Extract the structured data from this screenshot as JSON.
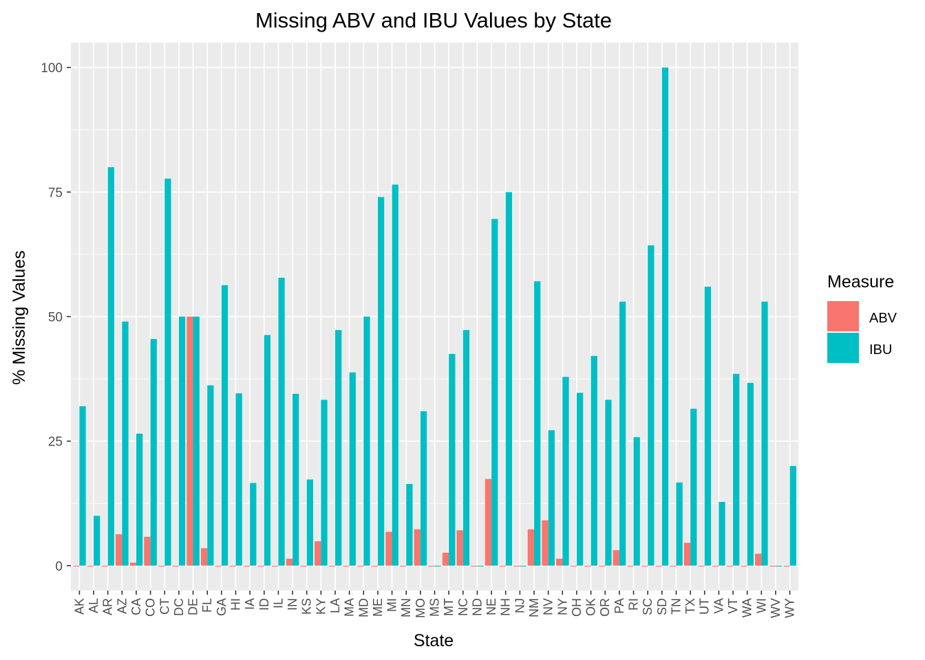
{
  "chart_data": {
    "type": "bar",
    "title": "Missing ABV and IBU Values by State",
    "xlabel": "State",
    "ylabel": "% Missing Values",
    "ylim": [
      -5,
      105
    ],
    "yticks": [
      0,
      25,
      50,
      75,
      100
    ],
    "grid": true,
    "legend": {
      "title": "Measure",
      "position": "right"
    },
    "categories": [
      "AK",
      "AL",
      "AR",
      "AZ",
      "CA",
      "CO",
      "CT",
      "DC",
      "DE",
      "FL",
      "GA",
      "HI",
      "IA",
      "ID",
      "IL",
      "IN",
      "KS",
      "KY",
      "LA",
      "MA",
      "MD",
      "ME",
      "MI",
      "MN",
      "MO",
      "MS",
      "MT",
      "NC",
      "ND",
      "NE",
      "NH",
      "NJ",
      "NM",
      "NV",
      "NY",
      "OH",
      "OK",
      "OR",
      "PA",
      "RI",
      "SC",
      "SD",
      "TN",
      "TX",
      "UT",
      "VA",
      "VT",
      "WA",
      "WI",
      "WV",
      "WY"
    ],
    "series": [
      {
        "name": "ABV",
        "color": "#F8766D",
        "values": [
          0,
          0,
          0,
          6.3,
          0.6,
          5.8,
          0,
          0,
          50,
          3.5,
          0,
          0,
          0,
          0,
          0,
          1.4,
          0,
          4.9,
          0,
          0,
          0,
          0,
          6.8,
          0,
          7.3,
          0,
          2.6,
          7.1,
          0,
          17.4,
          0,
          0,
          7.3,
          9.1,
          1.4,
          0,
          0,
          0,
          3.1,
          0,
          0,
          0,
          0,
          4.6,
          0,
          0,
          0,
          0,
          2.4,
          0,
          0
        ]
      },
      {
        "name": "IBU",
        "color": "#00BFC4",
        "values": [
          32,
          10,
          80,
          49,
          26.5,
          45.5,
          77.7,
          50,
          50,
          36.2,
          56.3,
          34.6,
          16.6,
          46.3,
          57.8,
          34.5,
          17.3,
          33.3,
          47.3,
          38.8,
          50,
          74,
          76.5,
          16.4,
          31,
          0,
          42.5,
          47.3,
          0,
          69.6,
          75,
          0,
          57.1,
          27.2,
          37.9,
          34.7,
          42.1,
          33.3,
          53,
          25.8,
          64.3,
          100,
          16.7,
          31.5,
          56,
          12.8,
          38.5,
          36.7,
          53,
          0,
          20
        ]
      }
    ]
  }
}
